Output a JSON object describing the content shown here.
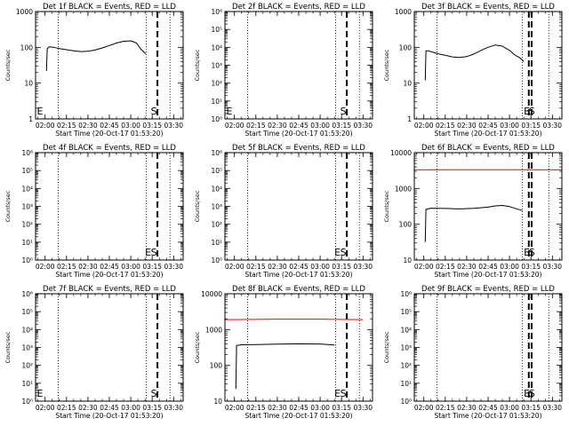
{
  "figure": {
    "x_axis_title": "Start Time (20-Oct-17 01:53:20)",
    "y_axis_title": "Counts/sec",
    "x_tick_labels": [
      "02:00",
      "02:15",
      "02:30",
      "02:45",
      "03:00",
      "03:15",
      "03:30"
    ],
    "marker_labels": {
      "E": "E",
      "S": "S"
    },
    "colors": {
      "events": "#000000",
      "lld": "#ff0000",
      "frame": "#000000"
    }
  },
  "chart_data": [
    {
      "type": "line",
      "title": "Det 1f BLACK = Events, RED = LLD",
      "y_scale": "log",
      "ylim": [
        1,
        1000
      ],
      "y_ticks": [
        1,
        10,
        100,
        1000
      ],
      "y_tick_labels": [
        "1",
        "10",
        "100",
        "1000"
      ],
      "xlim": [
        "01:53:20",
        "03:36:40"
      ],
      "vlines_dotted": [
        "02:09:10",
        "03:10:50",
        "03:27:30"
      ],
      "vlines_dashed": [
        "03:18:40"
      ],
      "markers": {
        "E": "01:53:20",
        "S": "03:14:00"
      },
      "series": [
        {
          "color": "black",
          "x": [
            "02:01:00",
            "02:01:30",
            "02:03:00",
            "02:06:00",
            "02:10:00",
            "02:15:00",
            "02:20:00",
            "02:25:00",
            "02:30:00",
            "02:35:00",
            "02:40:00",
            "02:45:00",
            "02:50:00",
            "02:55:00",
            "03:00:00",
            "03:04:00",
            "03:07:00",
            "03:10:30"
          ],
          "y": [
            22,
            92,
            103,
            101,
            92,
            86,
            80,
            76,
            78,
            84,
            96,
            112,
            132,
            148,
            152,
            132,
            90,
            66
          ]
        }
      ]
    },
    {
      "type": "line",
      "title": "Det 2f BLACK = Events, RED = LLD",
      "y_scale": "log",
      "ylim": [
        1,
        1000000
      ],
      "y_ticks": [
        1,
        10,
        100,
        1000,
        10000,
        100000,
        1000000
      ],
      "y_tick_labels": [
        "10⁰",
        "10¹",
        "10²",
        "10³",
        "10⁴",
        "10⁵",
        "10⁶"
      ],
      "xlim": [
        "01:53:20",
        "03:36:40"
      ],
      "vlines_dotted": [
        "02:09:10",
        "03:10:50",
        "03:27:30"
      ],
      "vlines_dashed": [
        "03:18:40"
      ],
      "markers": {
        "E": "01:53:20",
        "S": "03:14:00"
      },
      "series": []
    },
    {
      "type": "line",
      "title": "Det 3f BLACK = Events, RED = LLD",
      "y_scale": "log",
      "ylim": [
        1,
        1000
      ],
      "y_ticks": [
        1,
        10,
        100,
        1000
      ],
      "y_tick_labels": [
        "1",
        "10",
        "100",
        "1000"
      ],
      "xlim": [
        "01:53:20",
        "03:36:40"
      ],
      "vlines_dotted": [
        "02:09:10",
        "03:09:00",
        "03:27:30"
      ],
      "vlines_dashed": [
        "03:13:30",
        "03:15:30"
      ],
      "markers": {
        "E": "03:10:00",
        "S": "03:13:30"
      },
      "series": [
        {
          "color": "black",
          "x": [
            "02:01:00",
            "02:01:30",
            "02:03:00",
            "02:06:00",
            "02:10:00",
            "02:15:00",
            "02:20:00",
            "02:25:00",
            "02:30:00",
            "02:35:00",
            "02:40:00",
            "02:45:00",
            "02:50:00",
            "02:55:00",
            "03:00:00",
            "03:04:00",
            "03:07:00",
            "03:10:00"
          ],
          "y": [
            12,
            80,
            80,
            74,
            66,
            60,
            54,
            52,
            55,
            65,
            82,
            100,
            116,
            108,
            82,
            60,
            52,
            40
          ]
        }
      ]
    },
    {
      "type": "line",
      "title": "Det 4f BLACK = Events, RED = LLD",
      "y_scale": "log",
      "ylim": [
        1,
        1000000
      ],
      "y_ticks": [
        1,
        10,
        100,
        1000,
        10000,
        100000,
        1000000
      ],
      "y_tick_labels": [
        "10⁰",
        "10¹",
        "10²",
        "10³",
        "10⁴",
        "10⁵",
        "10⁶"
      ],
      "xlim": [
        "01:53:20",
        "03:36:40"
      ],
      "vlines_dotted": [
        "02:09:10",
        "03:10:50",
        "03:27:30"
      ],
      "vlines_dashed": [
        "03:18:40"
      ],
      "markers": {
        "E": "03:10:00",
        "S": "03:14:00"
      },
      "series": []
    },
    {
      "type": "line",
      "title": "Det 5f BLACK = Events, RED = LLD",
      "y_scale": "log",
      "ylim": [
        1,
        1000000
      ],
      "y_ticks": [
        1,
        10,
        100,
        1000,
        10000,
        100000,
        1000000
      ],
      "y_tick_labels": [
        "10⁰",
        "10¹",
        "10²",
        "10³",
        "10⁴",
        "10⁵",
        "10⁶"
      ],
      "xlim": [
        "01:53:20",
        "03:36:40"
      ],
      "vlines_dotted": [
        "02:09:10",
        "03:10:50",
        "03:27:30"
      ],
      "vlines_dashed": [
        "03:18:40"
      ],
      "markers": {
        "E": "03:10:00",
        "S": "03:14:00"
      },
      "series": []
    },
    {
      "type": "line",
      "title": "Det 6f BLACK = Events, RED = LLD",
      "y_scale": "log",
      "ylim": [
        10,
        10000
      ],
      "y_ticks": [
        10,
        100,
        1000,
        10000
      ],
      "y_tick_labels": [
        "10",
        "100",
        "1000",
        "10000"
      ],
      "xlim": [
        "01:53:20",
        "03:36:40"
      ],
      "vlines_dotted": [
        "02:09:10",
        "03:09:00",
        "03:27:30"
      ],
      "vlines_dashed": [
        "03:13:30",
        "03:15:30"
      ],
      "markers": {
        "E": "03:10:00",
        "S": "03:13:30"
      },
      "series": [
        {
          "color": "red",
          "x": [
            "01:53:20",
            "02:30:00",
            "03:00:00",
            "03:36:40"
          ],
          "y": [
            3300,
            3350,
            3350,
            3300
          ]
        },
        {
          "color": "black",
          "x": [
            "02:01:00",
            "02:01:30",
            "02:05:00",
            "02:15:00",
            "02:25:00",
            "02:35:00",
            "02:45:00",
            "02:50:00",
            "02:55:00",
            "03:00:00",
            "03:05:00",
            "03:09:00"
          ],
          "y": [
            32,
            260,
            280,
            275,
            268,
            278,
            300,
            325,
            335,
            310,
            270,
            240
          ]
        }
      ]
    },
    {
      "type": "line",
      "title": "Det 7f BLACK = Events, RED = LLD",
      "y_scale": "log",
      "ylim": [
        1,
        1000000
      ],
      "y_ticks": [
        1,
        10,
        100,
        1000,
        10000,
        100000,
        1000000
      ],
      "y_tick_labels": [
        "10⁰",
        "10¹",
        "10²",
        "10³",
        "10⁴",
        "10⁵",
        "10⁶"
      ],
      "xlim": [
        "01:53:20",
        "03:36:40"
      ],
      "vlines_dotted": [
        "02:09:10",
        "03:10:50",
        "03:27:30"
      ],
      "vlines_dashed": [
        "03:18:40"
      ],
      "markers": {
        "E": "01:53:20",
        "S": "03:14:00"
      },
      "series": []
    },
    {
      "type": "line",
      "title": "Det 8f BLACK = Events, RED = LLD",
      "y_scale": "log",
      "ylim": [
        10,
        10000
      ],
      "y_ticks": [
        10,
        100,
        1000,
        10000
      ],
      "y_tick_labels": [
        "10",
        "100",
        "1000",
        "10000"
      ],
      "xlim": [
        "01:53:20",
        "03:36:40"
      ],
      "vlines_dotted": [
        "02:09:10",
        "03:10:50",
        "03:27:30"
      ],
      "vlines_dashed": [
        "03:18:40"
      ],
      "markers": {
        "E": "03:10:00",
        "S": "03:14:00"
      },
      "series": [
        {
          "color": "red",
          "x": [
            "01:53:20",
            "02:30:00",
            "03:00:00",
            "03:30:00"
          ],
          "y": [
            1900,
            1950,
            1950,
            1900
          ]
        },
        {
          "color": "black",
          "x": [
            "02:01:00",
            "02:01:30",
            "02:05:00",
            "02:15:00",
            "02:30:00",
            "02:45:00",
            "03:00:00",
            "03:10:00"
          ],
          "y": [
            22,
            360,
            375,
            380,
            390,
            400,
            395,
            370
          ]
        }
      ]
    },
    {
      "type": "line",
      "title": "Det 9f BLACK = Events, RED = LLD",
      "y_scale": "log",
      "ylim": [
        1,
        1000000
      ],
      "y_ticks": [
        1,
        10,
        100,
        1000,
        10000,
        100000,
        1000000
      ],
      "y_tick_labels": [
        "10⁰",
        "10¹",
        "10²",
        "10³",
        "10⁴",
        "10⁵",
        "10⁶"
      ],
      "xlim": [
        "01:53:20",
        "03:36:40"
      ],
      "vlines_dotted": [
        "02:09:10",
        "03:09:00",
        "03:27:30"
      ],
      "vlines_dashed": [
        "03:13:30",
        "03:15:30"
      ],
      "markers": {
        "E": "03:10:00",
        "S": "03:13:30"
      },
      "series": []
    }
  ]
}
